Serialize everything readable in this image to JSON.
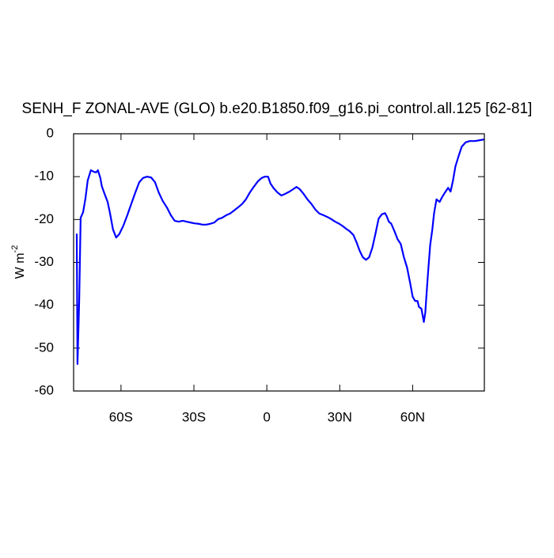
{
  "chart_data": {
    "type": "line",
    "title": "SENH_F ZONAL-AVE (GLO) b.e20.B1850.f09_g16.pi_control.all.125 [62-81]",
    "ylabel": "W m",
    "ylabel_exponent": "-2",
    "color": "#0000ff",
    "xlim": [
      -79.5,
      89.5
    ],
    "ylim": [
      -60,
      0
    ],
    "xticks": [
      {
        "value": -60,
        "label": "60S"
      },
      {
        "value": -30,
        "label": "30S"
      },
      0,
      {
        "value": 30,
        "label": "30N"
      },
      {
        "value": 60,
        "label": "60N"
      }
    ],
    "yticks": [
      -60,
      -50,
      -40,
      -30,
      -20,
      -10,
      0
    ],
    "x": [
      -78.2,
      -77.9,
      -77.2,
      -76.6,
      -75.6,
      -74.6,
      -73.7,
      -72.4,
      -71.1,
      -70.2,
      -69.5,
      -68.5,
      -67.9,
      -66.9,
      -65.5,
      -64.5,
      -63.3,
      -62,
      -60.7,
      -59,
      -57.4,
      -55.8,
      -54.1,
      -52.5,
      -50.9,
      -49.3,
      -47.6,
      -46,
      -44.4,
      -42.8,
      -41.1,
      -39.5,
      -37.9,
      -36.3,
      -34.6,
      -33,
      -31.4,
      -29.8,
      -28.1,
      -26.5,
      -24.9,
      -23.3,
      -21.6,
      -20,
      -18.4,
      -16.7,
      -15.1,
      -13.5,
      -11.9,
      -10.2,
      -8.6,
      -7,
      -5.4,
      -3.7,
      -2.1,
      -0.8,
      0.5,
      1.5,
      2.8,
      4.4,
      6,
      7.6,
      9.3,
      10.9,
      12.2,
      13.5,
      15.1,
      16.7,
      18.4,
      20,
      21.6,
      23.3,
      24.9,
      26.5,
      28.1,
      29.8,
      31.4,
      32.7,
      34,
      35.6,
      36.9,
      38.2,
      39.5,
      40.8,
      42.1,
      43.4,
      44.7,
      46,
      47.3,
      48.6,
      49.3,
      50.2,
      51.2,
      52.5,
      53.8,
      55.1,
      56.4,
      57.7,
      59,
      60,
      61,
      62,
      62.6,
      63.6,
      64.6,
      65.2,
      66.2,
      67.2,
      68.1,
      68.8,
      69.8,
      71.1,
      72,
      73.3,
      74.6,
      75.6,
      76.6,
      77.6,
      78.9,
      80.2,
      81.8,
      83.5,
      85.7,
      87.6,
      89.6
    ],
    "values": [
      -23.3,
      -53.7,
      -39,
      -19.6,
      -18.3,
      -15,
      -10.9,
      -8.5,
      -8.9,
      -9,
      -8.5,
      -10.3,
      -12.2,
      -13.8,
      -15.9,
      -18.6,
      -22.3,
      -24.2,
      -23.4,
      -21.4,
      -19,
      -16.4,
      -13.7,
      -11.3,
      -10.3,
      -10,
      -10.2,
      -11.3,
      -13.8,
      -15.7,
      -17.2,
      -19,
      -20.3,
      -20.5,
      -20.3,
      -20.5,
      -20.7,
      -20.9,
      -21,
      -21.2,
      -21.2,
      -21,
      -20.7,
      -19.9,
      -19.6,
      -19,
      -18.6,
      -17.9,
      -17.2,
      -16.4,
      -15.3,
      -13.7,
      -12.4,
      -11.1,
      -10.3,
      -10,
      -10,
      -11.6,
      -12.7,
      -13.7,
      -14.4,
      -14,
      -13.5,
      -12.9,
      -12.4,
      -12.9,
      -14,
      -15.3,
      -16.4,
      -17.7,
      -18.6,
      -19,
      -19.4,
      -19.9,
      -20.5,
      -21,
      -21.6,
      -22.2,
      -22.7,
      -23.6,
      -25.3,
      -27.3,
      -28.8,
      -29.4,
      -28.8,
      -26.6,
      -23.3,
      -19.8,
      -18.8,
      -18.5,
      -19.2,
      -20.5,
      -21,
      -22.7,
      -24.6,
      -25.7,
      -28.8,
      -31.2,
      -34.9,
      -38,
      -39,
      -39,
      -40.4,
      -40.8,
      -43.9,
      -41.7,
      -33.4,
      -26,
      -22.3,
      -18.6,
      -15.3,
      -15.9,
      -14.9,
      -13.7,
      -12.6,
      -13.5,
      -10.9,
      -7.6,
      -5.2,
      -3,
      -2,
      -1.7,
      -1.7,
      -1.5,
      -1.3
    ]
  }
}
